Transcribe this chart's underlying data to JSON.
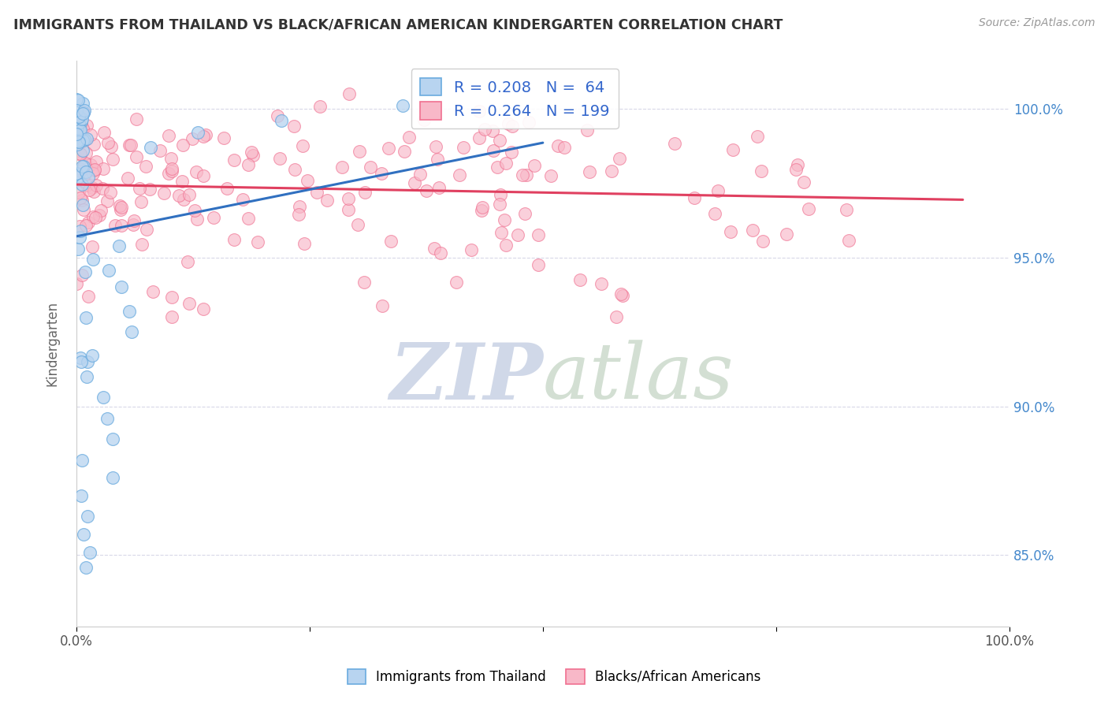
{
  "title": "IMMIGRANTS FROM THAILAND VS BLACK/AFRICAN AMERICAN KINDERGARTEN CORRELATION CHART",
  "source": "Source: ZipAtlas.com",
  "ylabel": "Kindergarten",
  "watermark_zip": "ZIP",
  "watermark_atlas": "atlas",
  "blue_R": 0.208,
  "blue_N": 64,
  "pink_R": 0.264,
  "pink_N": 199,
  "blue_fill_color": "#b8d4f0",
  "pink_fill_color": "#f8b8c8",
  "blue_edge_color": "#6aabdf",
  "pink_edge_color": "#f07090",
  "blue_trend_color": "#3070c0",
  "pink_trend_color": "#e04060",
  "legend_label_blue": "Immigrants from Thailand",
  "legend_label_pink": "Blacks/African Americans",
  "xmin": 0.0,
  "xmax": 1.0,
  "ymin": 0.826,
  "ymax": 1.016,
  "yticks": [
    0.85,
    0.9,
    0.95,
    1.0
  ],
  "ytick_labels": [
    "85.0%",
    "90.0%",
    "95.0%",
    "100.0%"
  ],
  "background_color": "#ffffff",
  "grid_color": "#d8d8e8"
}
